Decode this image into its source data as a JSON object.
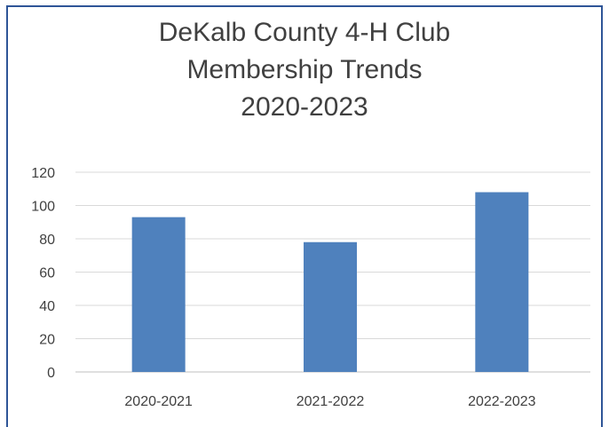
{
  "chart_data": {
    "type": "bar",
    "title_lines": [
      "DeKalb County 4-H Club",
      "Membership Trends",
      "2020-2023"
    ],
    "categories": [
      "2020-2021",
      "2021-2022",
      "2022-2023"
    ],
    "values": [
      93,
      78,
      108
    ],
    "y_ticks": [
      "0",
      "20",
      "40",
      "60",
      "80",
      "100",
      "120"
    ],
    "ylim": [
      0,
      120
    ],
    "grid": true,
    "legend": "none",
    "bar_color": "#4f81bd",
    "grid_color": "#d9d9d9",
    "frame_color": "#2e5597"
  }
}
